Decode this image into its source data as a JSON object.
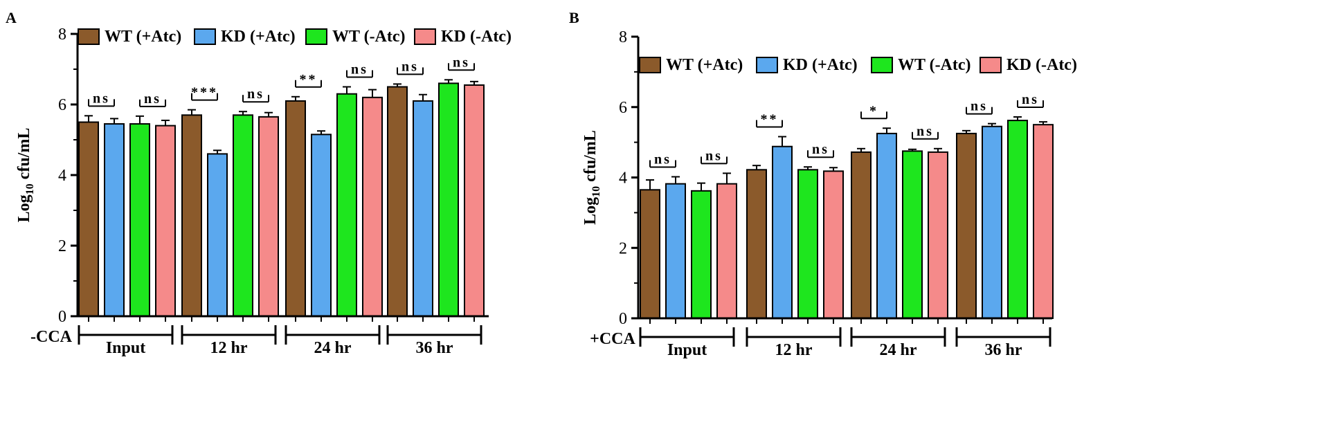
{
  "colors": {
    "WT (+Atc)": "#8B5A2B",
    "KD (+Atc)": "#5BA8EE",
    "WT (-Atc)": "#1EE61E",
    "KD (-Atc)": "#F58A8A",
    "axis": "#000000"
  },
  "chart_data": [
    {
      "panel_label": "A",
      "type": "bar",
      "ylabel_main": "Log",
      "ylabel_sub": "10",
      "ylabel_rest": " cfu/mL",
      "ylim": [
        0,
        8
      ],
      "yticks": [
        "0",
        "2",
        "4",
        "6",
        "8"
      ],
      "condition_label": "-CCA",
      "categories": [
        "Input",
        "12 hr",
        "24 hr",
        "36 hr"
      ],
      "legend": [
        "WT (+Atc)",
        "KD (+Atc)",
        "WT (-Atc)",
        "KD (-Atc)"
      ],
      "series": [
        {
          "name": "WT (+Atc)",
          "values": [
            5.5,
            5.7,
            6.1,
            6.5
          ],
          "errors": [
            0.18,
            0.15,
            0.12,
            0.08
          ]
        },
        {
          "name": "KD (+Atc)",
          "values": [
            5.45,
            4.6,
            5.15,
            6.1
          ],
          "errors": [
            0.15,
            0.1,
            0.1,
            0.18
          ]
        },
        {
          "name": "WT (-Atc)",
          "values": [
            5.45,
            5.7,
            6.3,
            6.6
          ],
          "errors": [
            0.22,
            0.1,
            0.2,
            0.1
          ]
        },
        {
          "name": "KD (-Atc)",
          "values": [
            5.4,
            5.65,
            6.2,
            6.55
          ],
          "errors": [
            0.15,
            0.12,
            0.22,
            0.1
          ]
        }
      ],
      "annotations": [
        {
          "group": 0,
          "pair": "left",
          "text": "ns"
        },
        {
          "group": 0,
          "pair": "right",
          "text": "ns"
        },
        {
          "group": 1,
          "pair": "left",
          "text": "***"
        },
        {
          "group": 1,
          "pair": "right",
          "text": "ns"
        },
        {
          "group": 2,
          "pair": "left",
          "text": "**"
        },
        {
          "group": 2,
          "pair": "right",
          "text": "ns"
        },
        {
          "group": 3,
          "pair": "left",
          "text": "ns"
        },
        {
          "group": 3,
          "pair": "right",
          "text": "ns"
        }
      ]
    },
    {
      "panel_label": "B",
      "type": "bar",
      "ylabel_main": "Log",
      "ylabel_sub": "10",
      "ylabel_rest": " cfu/mL",
      "ylim": [
        0,
        8
      ],
      "yticks": [
        "0",
        "2",
        "4",
        "6",
        "8"
      ],
      "condition_label": "+CCA",
      "categories": [
        "Input",
        "12 hr",
        "24 hr",
        "36 hr"
      ],
      "legend": [
        "WT (+Atc)",
        "KD (+Atc)",
        "WT (-Atc)",
        "KD (-Atc)"
      ],
      "series": [
        {
          "name": "WT (+Atc)",
          "values": [
            3.65,
            4.22,
            4.72,
            5.25
          ],
          "errors": [
            0.28,
            0.12,
            0.1,
            0.08
          ]
        },
        {
          "name": "KD (+Atc)",
          "values": [
            3.82,
            4.88,
            5.25,
            5.45
          ],
          "errors": [
            0.2,
            0.28,
            0.15,
            0.08
          ]
        },
        {
          "name": "WT (-Atc)",
          "values": [
            3.62,
            4.22,
            4.75,
            5.62
          ],
          "errors": [
            0.22,
            0.08,
            0.05,
            0.1
          ]
        },
        {
          "name": "KD (-Atc)",
          "values": [
            3.82,
            4.18,
            4.72,
            5.5
          ],
          "errors": [
            0.3,
            0.1,
            0.1,
            0.08
          ]
        }
      ],
      "annotations": [
        {
          "group": 0,
          "pair": "left",
          "text": "ns"
        },
        {
          "group": 0,
          "pair": "right",
          "text": "ns"
        },
        {
          "group": 1,
          "pair": "left",
          "text": "**"
        },
        {
          "group": 1,
          "pair": "right",
          "text": "ns"
        },
        {
          "group": 2,
          "pair": "left",
          "text": "*"
        },
        {
          "group": 2,
          "pair": "right",
          "text": "ns"
        },
        {
          "group": 3,
          "pair": "left",
          "text": "ns"
        },
        {
          "group": 3,
          "pair": "right",
          "text": "ns"
        }
      ]
    }
  ]
}
